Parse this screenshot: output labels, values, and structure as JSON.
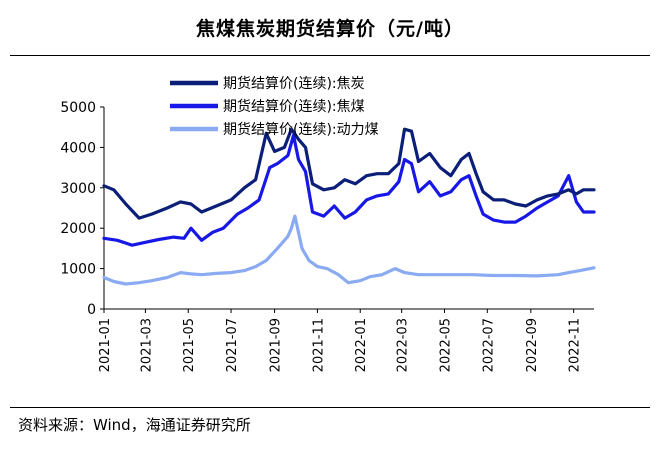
{
  "chart_data": {
    "type": "line",
    "title": "焦煤焦炭期货结算价（元/吨）",
    "xlabel": "",
    "ylabel": "",
    "ylim": [
      0,
      5000
    ],
    "yticks": [
      0,
      1000,
      2000,
      3000,
      4000,
      5000
    ],
    "xlim": [
      "2021-01-01",
      "2022-11-30"
    ],
    "xtick_labels": [
      "2021-01",
      "2021-03",
      "2021-05",
      "2021-07",
      "2021-09",
      "2021-11",
      "2022-01",
      "2022-03",
      "2022-05",
      "2022-07",
      "2022-09",
      "2022-11"
    ],
    "legend_position": "top-left",
    "series": [
      {
        "name": "期货结算价(连续):焦炭",
        "color": "#0b1e78",
        "points": [
          [
            "2021-01-01",
            3050
          ],
          [
            "2021-01-15",
            2950
          ],
          [
            "2021-02-01",
            2600
          ],
          [
            "2021-02-20",
            2250
          ],
          [
            "2021-03-10",
            2350
          ],
          [
            "2021-04-01",
            2500
          ],
          [
            "2021-04-20",
            2650
          ],
          [
            "2021-05-05",
            2600
          ],
          [
            "2021-05-20",
            2400
          ],
          [
            "2021-06-10",
            2550
          ],
          [
            "2021-07-01",
            2700
          ],
          [
            "2021-07-20",
            3000
          ],
          [
            "2021-08-05",
            3200
          ],
          [
            "2021-08-20",
            4350
          ],
          [
            "2021-09-01",
            3900
          ],
          [
            "2021-09-15",
            4000
          ],
          [
            "2021-09-25",
            4450
          ],
          [
            "2021-10-05",
            4200
          ],
          [
            "2021-10-15",
            4000
          ],
          [
            "2021-10-25",
            3100
          ],
          [
            "2021-11-10",
            2950
          ],
          [
            "2021-11-25",
            3000
          ],
          [
            "2021-12-10",
            3200
          ],
          [
            "2021-12-25",
            3100
          ],
          [
            "2022-01-10",
            3300
          ],
          [
            "2022-01-25",
            3350
          ],
          [
            "2022-02-10",
            3350
          ],
          [
            "2022-02-25",
            3600
          ],
          [
            "2022-03-05",
            4450
          ],
          [
            "2022-03-15",
            4400
          ],
          [
            "2022-03-25",
            3650
          ],
          [
            "2022-04-10",
            3850
          ],
          [
            "2022-04-25",
            3500
          ],
          [
            "2022-05-10",
            3300
          ],
          [
            "2022-05-25",
            3700
          ],
          [
            "2022-06-05",
            3850
          ],
          [
            "2022-06-15",
            3350
          ],
          [
            "2022-06-25",
            2900
          ],
          [
            "2022-07-10",
            2700
          ],
          [
            "2022-07-25",
            2700
          ],
          [
            "2022-08-10",
            2600
          ],
          [
            "2022-08-25",
            2550
          ],
          [
            "2022-09-10",
            2700
          ],
          [
            "2022-09-25",
            2800
          ],
          [
            "2022-10-10",
            2850
          ],
          [
            "2022-10-25",
            2950
          ],
          [
            "2022-11-05",
            2850
          ],
          [
            "2022-11-15",
            2950
          ],
          [
            "2022-11-30",
            2950
          ]
        ]
      },
      {
        "name": "期货结算价(连续):焦煤",
        "color": "#1818e6",
        "points": [
          [
            "2021-01-01",
            1750
          ],
          [
            "2021-01-20",
            1700
          ],
          [
            "2021-02-10",
            1580
          ],
          [
            "2021-03-01",
            1650
          ],
          [
            "2021-03-20",
            1720
          ],
          [
            "2021-04-10",
            1780
          ],
          [
            "2021-04-25",
            1750
          ],
          [
            "2021-05-05",
            2000
          ],
          [
            "2021-05-20",
            1700
          ],
          [
            "2021-06-05",
            1900
          ],
          [
            "2021-06-20",
            2000
          ],
          [
            "2021-07-10",
            2350
          ],
          [
            "2021-07-25",
            2500
          ],
          [
            "2021-08-10",
            2700
          ],
          [
            "2021-08-25",
            3500
          ],
          [
            "2021-09-05",
            3600
          ],
          [
            "2021-09-20",
            3800
          ],
          [
            "2021-09-28",
            4300
          ],
          [
            "2021-10-05",
            3700
          ],
          [
            "2021-10-15",
            3400
          ],
          [
            "2021-10-25",
            2400
          ],
          [
            "2021-11-10",
            2300
          ],
          [
            "2021-11-25",
            2550
          ],
          [
            "2021-12-10",
            2250
          ],
          [
            "2021-12-25",
            2400
          ],
          [
            "2022-01-10",
            2700
          ],
          [
            "2022-01-25",
            2800
          ],
          [
            "2022-02-10",
            2850
          ],
          [
            "2022-02-25",
            3150
          ],
          [
            "2022-03-05",
            3700
          ],
          [
            "2022-03-15",
            3600
          ],
          [
            "2022-03-25",
            2900
          ],
          [
            "2022-04-10",
            3150
          ],
          [
            "2022-04-25",
            2800
          ],
          [
            "2022-05-10",
            2900
          ],
          [
            "2022-05-25",
            3200
          ],
          [
            "2022-06-05",
            3300
          ],
          [
            "2022-06-15",
            2800
          ],
          [
            "2022-06-25",
            2350
          ],
          [
            "2022-07-10",
            2200
          ],
          [
            "2022-07-25",
            2150
          ],
          [
            "2022-08-10",
            2150
          ],
          [
            "2022-08-25",
            2300
          ],
          [
            "2022-09-10",
            2500
          ],
          [
            "2022-09-25",
            2650
          ],
          [
            "2022-10-10",
            2800
          ],
          [
            "2022-10-25",
            3300
          ],
          [
            "2022-11-05",
            2650
          ],
          [
            "2022-11-15",
            2400
          ],
          [
            "2022-11-30",
            2400
          ]
        ]
      },
      {
        "name": "期货结算价(连续):动力煤",
        "color": "#8aaaf2",
        "points": [
          [
            "2021-01-01",
            780
          ],
          [
            "2021-01-15",
            680
          ],
          [
            "2021-02-01",
            620
          ],
          [
            "2021-02-20",
            650
          ],
          [
            "2021-03-10",
            700
          ],
          [
            "2021-04-01",
            780
          ],
          [
            "2021-04-20",
            900
          ],
          [
            "2021-05-05",
            870
          ],
          [
            "2021-05-20",
            850
          ],
          [
            "2021-06-10",
            880
          ],
          [
            "2021-07-01",
            900
          ],
          [
            "2021-07-20",
            950
          ],
          [
            "2021-08-05",
            1050
          ],
          [
            "2021-08-20",
            1200
          ],
          [
            "2021-09-05",
            1500
          ],
          [
            "2021-09-20",
            1800
          ],
          [
            "2021-09-25",
            2000
          ],
          [
            "2021-09-30",
            2300
          ],
          [
            "2021-10-10",
            1500
          ],
          [
            "2021-10-20",
            1200
          ],
          [
            "2021-11-01",
            1050
          ],
          [
            "2021-11-15",
            1000
          ],
          [
            "2021-12-01",
            850
          ],
          [
            "2021-12-15",
            650
          ],
          [
            "2022-01-01",
            700
          ],
          [
            "2022-01-15",
            800
          ],
          [
            "2022-02-01",
            850
          ],
          [
            "2022-02-20",
            1000
          ],
          [
            "2022-03-05",
            900
          ],
          [
            "2022-03-25",
            850
          ],
          [
            "2022-04-15",
            850
          ],
          [
            "2022-05-10",
            850
          ],
          [
            "2022-06-10",
            850
          ],
          [
            "2022-07-10",
            830
          ],
          [
            "2022-08-10",
            830
          ],
          [
            "2022-09-10",
            820
          ],
          [
            "2022-10-10",
            850
          ],
          [
            "2022-10-25",
            900
          ],
          [
            "2022-11-10",
            950
          ],
          [
            "2022-11-30",
            1020
          ]
        ]
      }
    ]
  },
  "source": "资料来源：Wind，海通证券研究所"
}
